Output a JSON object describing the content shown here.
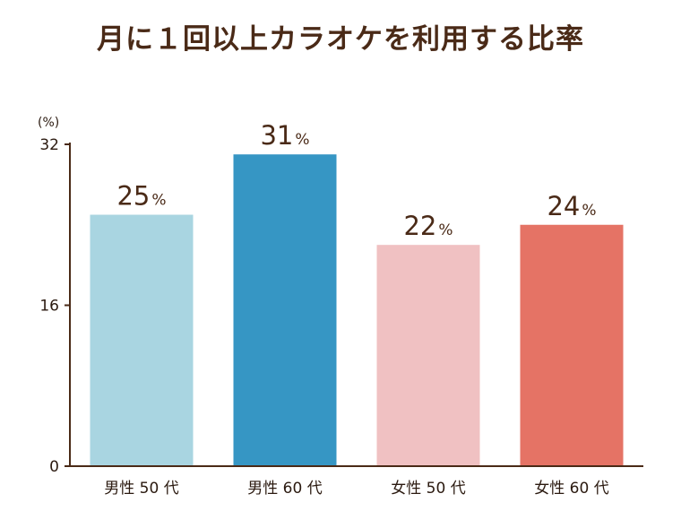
{
  "chart_data": {
    "type": "bar",
    "title": "月に１回以上カラオケを利用する比率",
    "ylabel": "(%)",
    "ylim": [
      0,
      32
    ],
    "yticks": [
      0,
      16,
      32
    ],
    "grid": false,
    "categories": [
      "男性 50 代",
      "男性 60 代",
      "女性 50 代",
      "女性 60 代"
    ],
    "values": [
      25,
      31,
      22,
      24
    ],
    "value_suffix": "%",
    "colors": [
      "#a9d5e1",
      "#3696c4",
      "#f0c1c2",
      "#e57365"
    ],
    "axis_color": "#4a2a17",
    "text_color": "#4a2a17"
  }
}
